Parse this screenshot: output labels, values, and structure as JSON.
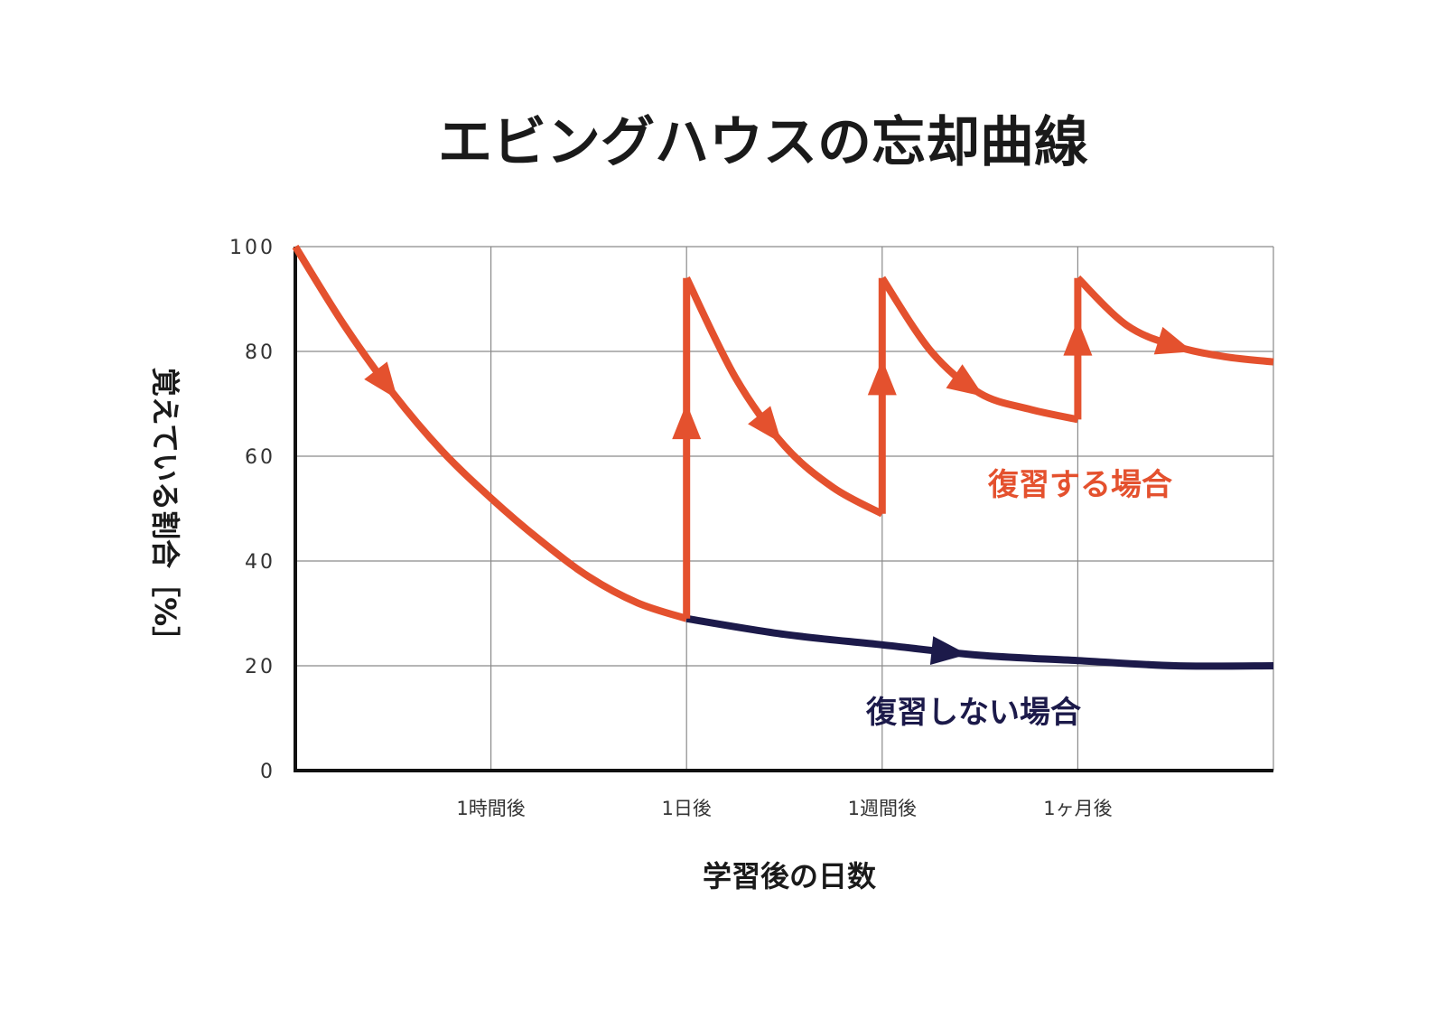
{
  "chart_data": {
    "type": "line",
    "title": "エビングハウスの忘却曲線",
    "xlabel": "学習後の日数",
    "ylabel": "覚えている割合［%］",
    "ylim": [
      0,
      100
    ],
    "yticks": [
      "0",
      "20",
      "40",
      "60",
      "80",
      "100"
    ],
    "x_categories": [
      "1時間後",
      "1日後",
      "1週間後",
      "1ヶ月後"
    ],
    "x_positions": [
      1,
      2,
      3,
      4
    ],
    "xlim": [
      0,
      5
    ],
    "grid": true,
    "series": [
      {
        "name": "復習する場合",
        "color": "#e4512e",
        "segments": [
          {
            "x": [
              0,
              0.25,
              0.5,
              0.75,
              1,
              1.25,
              1.5,
              1.75,
              2
            ],
            "y": [
              100,
              85,
              72,
              61,
              52,
              44,
              37,
              32,
              29
            ]
          },
          {
            "x": [
              2,
              2
            ],
            "y": [
              29,
              94
            ]
          },
          {
            "x": [
              2,
              2.25,
              2.5,
              2.75,
              3
            ],
            "y": [
              94,
              75,
              62,
              54,
              49
            ]
          },
          {
            "x": [
              3,
              3
            ],
            "y": [
              49,
              94
            ]
          },
          {
            "x": [
              3,
              3.25,
              3.5,
              3.75,
              4
            ],
            "y": [
              94,
              80,
              72,
              69,
              67
            ]
          },
          {
            "x": [
              4,
              4
            ],
            "y": [
              67,
              94
            ]
          },
          {
            "x": [
              4,
              4.25,
              4.5,
              4.75,
              5
            ],
            "y": [
              94,
              85,
              81,
              79,
              78
            ]
          }
        ]
      },
      {
        "name": "復習しない場合",
        "color": "#1c1a4a",
        "segments": [
          {
            "x": [
              2,
              2.5,
              3,
              3.5,
              4,
              4.5,
              5
            ],
            "y": [
              29,
              26,
              24,
              22,
              21,
              20,
              20
            ]
          }
        ]
      }
    ]
  }
}
